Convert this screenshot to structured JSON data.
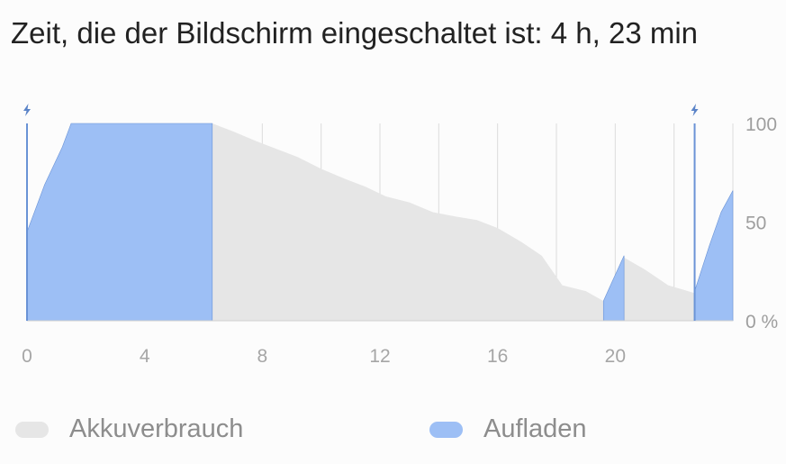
{
  "title": "Zeit, die der Bildschirm eingeschaltet ist: 4 h, 23 min",
  "legend": {
    "usage": "Akkuverbrauch",
    "charging": "Aufladen"
  },
  "colors": {
    "usage": "#e6e6e6",
    "charging": "#9dbff5",
    "charging_line": "#6a93d6",
    "grid": "#dcdcdc"
  },
  "icons": {
    "charge_marker": "lightning-bolt-icon"
  },
  "chart_data": {
    "type": "area",
    "xlabel": "",
    "ylabel": "",
    "xlim": [
      0,
      24
    ],
    "ylim": [
      0,
      100
    ],
    "x_ticks": [
      "0",
      "4",
      "8",
      "12",
      "16",
      "20"
    ],
    "x_tick_values": [
      0,
      4,
      8,
      12,
      16,
      20
    ],
    "y_ticks": [
      "100",
      "50",
      "0 %"
    ],
    "y_tick_values": [
      100,
      50,
      0
    ],
    "grid": "vertical, every 2 h",
    "legend_position": "bottom",
    "charge_markers_x": [
      0,
      22.7
    ],
    "series": [
      {
        "name": "Akkuverbrauch",
        "points": [
          [
            6.3,
            100
          ],
          [
            7.0,
            96
          ],
          [
            7.8,
            91
          ],
          [
            8.5,
            87
          ],
          [
            9.2,
            83
          ],
          [
            10.0,
            77
          ],
          [
            10.8,
            72
          ],
          [
            11.5,
            68
          ],
          [
            12.2,
            63
          ],
          [
            13.0,
            60
          ],
          [
            13.8,
            55
          ],
          [
            14.5,
            53
          ],
          [
            15.3,
            51
          ],
          [
            16.0,
            47
          ],
          [
            16.8,
            40
          ],
          [
            17.5,
            33
          ],
          [
            18.2,
            18
          ],
          [
            19.0,
            15
          ],
          [
            19.6,
            10
          ],
          [
            20.3,
            32
          ],
          [
            21.0,
            26
          ],
          [
            21.8,
            18
          ],
          [
            22.7,
            14
          ]
        ]
      },
      {
        "name": "Aufladen",
        "segments": [
          [
            [
              0,
              45
            ],
            [
              0.6,
              69
            ],
            [
              1.2,
              88
            ],
            [
              1.5,
              100
            ],
            [
              6.3,
              100
            ]
          ],
          [
            [
              19.6,
              10
            ],
            [
              19.9,
              20
            ],
            [
              20.3,
              33
            ]
          ],
          [
            [
              22.7,
              15
            ],
            [
              23.2,
              38
            ],
            [
              23.6,
              55
            ],
            [
              24,
              66
            ]
          ]
        ]
      }
    ]
  }
}
